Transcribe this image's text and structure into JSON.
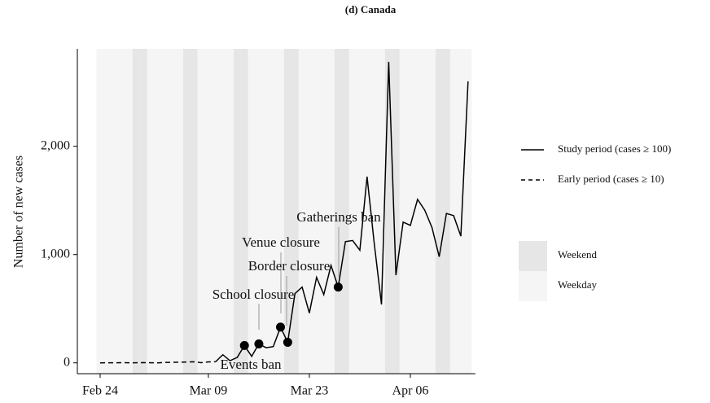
{
  "chart_data": {
    "type": "line",
    "title": "(d) Canada",
    "y_label": "Number of new cases",
    "categories": [
      "Feb 24",
      null,
      null,
      null,
      null,
      null,
      null,
      null,
      null,
      null,
      null,
      null,
      null,
      null,
      null,
      "Mar 09",
      null,
      null,
      null,
      null,
      null,
      null,
      null,
      null,
      null,
      null,
      null,
      null,
      null,
      "Mar 23",
      null,
      null,
      null,
      null,
      null,
      null,
      null,
      null,
      null,
      null,
      null,
      null,
      null,
      "Apr 06",
      null,
      null,
      null,
      null,
      null,
      null,
      null,
      null
    ],
    "series": [
      {
        "name": "Early period (cases ≥ 10)",
        "color": "#000000",
        "dash": true,
        "values": [
          0,
          1,
          0,
          2,
          1,
          1,
          2,
          1,
          0,
          4,
          5,
          6,
          8,
          10,
          2,
          9,
          10,
          null,
          null,
          null,
          null,
          null,
          null,
          null,
          null,
          null,
          null,
          null,
          null,
          null,
          null,
          null,
          null,
          null,
          null,
          null,
          null,
          null,
          null,
          null,
          null,
          null,
          null,
          null,
          null,
          null,
          null,
          null,
          null,
          null,
          null,
          null
        ]
      },
      {
        "name": "Study period (cases ≥ 100)",
        "color": "#000000",
        "dash": false,
        "values": [
          null,
          null,
          null,
          null,
          null,
          null,
          null,
          null,
          null,
          null,
          null,
          null,
          null,
          null,
          null,
          null,
          10,
          75,
          20,
          50,
          160,
          60,
          175,
          140,
          150,
          330,
          190,
          640,
          700,
          460,
          790,
          630,
          900,
          700,
          1120,
          1130,
          1040,
          1720,
          1100,
          540,
          2780,
          810,
          1300,
          1270,
          1510,
          1410,
          1250,
          980,
          1380,
          1360,
          1170,
          2600
        ]
      }
    ],
    "annotations": [
      {
        "text": "Events ban",
        "index": 20,
        "value": 160
      },
      {
        "text": "School closure",
        "index": 22,
        "value": 175
      },
      {
        "text": "Venue closure",
        "index": 25,
        "value": 330
      },
      {
        "text": "Border closure",
        "index": 26,
        "value": 190
      },
      {
        "text": "Gatherings ban",
        "index": 33,
        "value": 700
      }
    ],
    "shading": [
      {
        "name": "Weekend",
        "color": "#e6e6e6",
        "indices": [
          5,
          6,
          12,
          13,
          19,
          20,
          26,
          27,
          33,
          34,
          40,
          41,
          47,
          48
        ]
      },
      {
        "name": "Weekday",
        "color": "#f5f5f5"
      }
    ],
    "ylim": [
      -100,
      2900
    ],
    "yticks": [
      0,
      {
        "value": 1000,
        "label": "1,000"
      },
      {
        "value": 2000,
        "label": "2,000"
      }
    ]
  }
}
